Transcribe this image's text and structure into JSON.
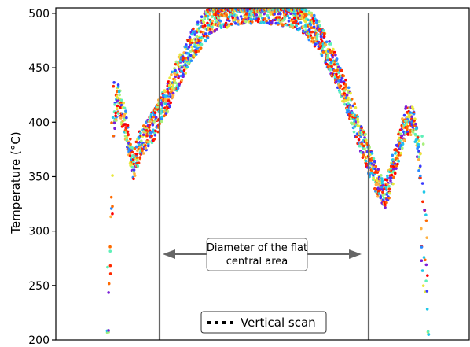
{
  "chart_data": {
    "type": "scatter",
    "title": "",
    "xlabel": "",
    "ylabel": "Temperature (°C)",
    "ylim": [
      200,
      505
    ],
    "yticks": [
      200,
      250,
      300,
      350,
      400,
      450,
      500
    ],
    "x_ticks_shown": false,
    "grid": false,
    "legend": {
      "position": "bottom-center",
      "entries": [
        {
          "label": "Vertical scan",
          "marker": "dotted-line",
          "color": "#000000"
        }
      ]
    },
    "annotation": {
      "text_lines": [
        "Diameter of the flat",
        "central area"
      ],
      "arrow": "double-headed",
      "arrow_color": "#666666"
    },
    "vertical_lines": {
      "count": 2,
      "color": "#666666"
    },
    "colormap": "rainbow",
    "series_profile": [
      {
        "x": 0.0,
        "y": 210
      },
      {
        "x": 0.008,
        "y": 300
      },
      {
        "x": 0.016,
        "y": 390
      },
      {
        "x": 0.03,
        "y": 425
      },
      {
        "x": 0.055,
        "y": 398
      },
      {
        "x": 0.08,
        "y": 360
      },
      {
        "x": 0.105,
        "y": 382
      },
      {
        "x": 0.145,
        "y": 398
      },
      {
        "x": 0.2,
        "y": 432
      },
      {
        "x": 0.26,
        "y": 470
      },
      {
        "x": 0.32,
        "y": 494
      },
      {
        "x": 0.38,
        "y": 502
      },
      {
        "x": 0.44,
        "y": 504
      },
      {
        "x": 0.5,
        "y": 504
      },
      {
        "x": 0.56,
        "y": 502
      },
      {
        "x": 0.61,
        "y": 496
      },
      {
        "x": 0.66,
        "y": 478
      },
      {
        "x": 0.71,
        "y": 450
      },
      {
        "x": 0.75,
        "y": 420
      },
      {
        "x": 0.79,
        "y": 385
      },
      {
        "x": 0.82,
        "y": 362
      },
      {
        "x": 0.85,
        "y": 338
      },
      {
        "x": 0.87,
        "y": 335
      },
      {
        "x": 0.9,
        "y": 370
      },
      {
        "x": 0.93,
        "y": 402
      },
      {
        "x": 0.955,
        "y": 400
      },
      {
        "x": 0.975,
        "y": 360
      },
      {
        "x": 0.99,
        "y": 280
      },
      {
        "x": 1.0,
        "y": 210
      }
    ]
  }
}
